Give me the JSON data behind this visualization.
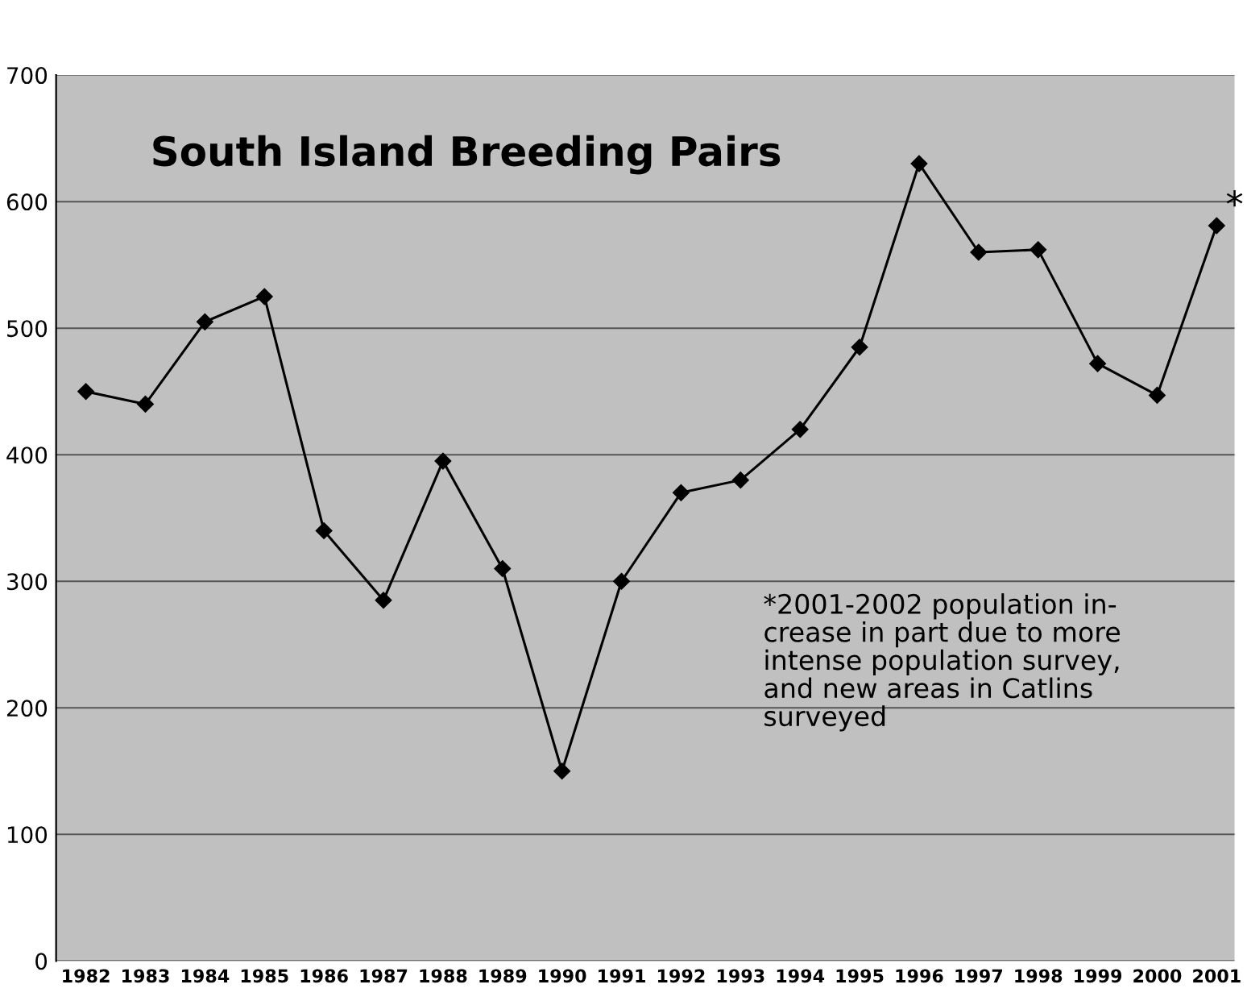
{
  "chart_data": {
    "type": "line",
    "title": "South Island Breeding Pairs",
    "categories": [
      "1982",
      "1983",
      "1984",
      "1985",
      "1986",
      "1987",
      "1988",
      "1989",
      "1990",
      "1991",
      "1992",
      "1993",
      "1994",
      "1995",
      "1996",
      "1997",
      "1998",
      "1999",
      "2000",
      "2001"
    ],
    "series": [
      {
        "color": "#000000",
        "values": [
          450,
          440,
          505,
          525,
          340,
          285,
          395,
          310,
          150,
          300,
          370,
          380,
          420,
          485,
          630,
          560,
          562,
          472,
          447,
          581
        ]
      }
    ],
    "ylim": [
      0,
      700
    ],
    "yticks": [
      0,
      100,
      200,
      300,
      400,
      500,
      600,
      700
    ],
    "grid": "y",
    "marker": "diamond",
    "line_style": "solid",
    "annotations": [
      {
        "text": "*",
        "x": "2001",
        "y": 581
      },
      "*2001-2002 population in-\ncrease in part due to more\nintense population survey,\nand new areas in Catlins\nsurveyed"
    ]
  }
}
